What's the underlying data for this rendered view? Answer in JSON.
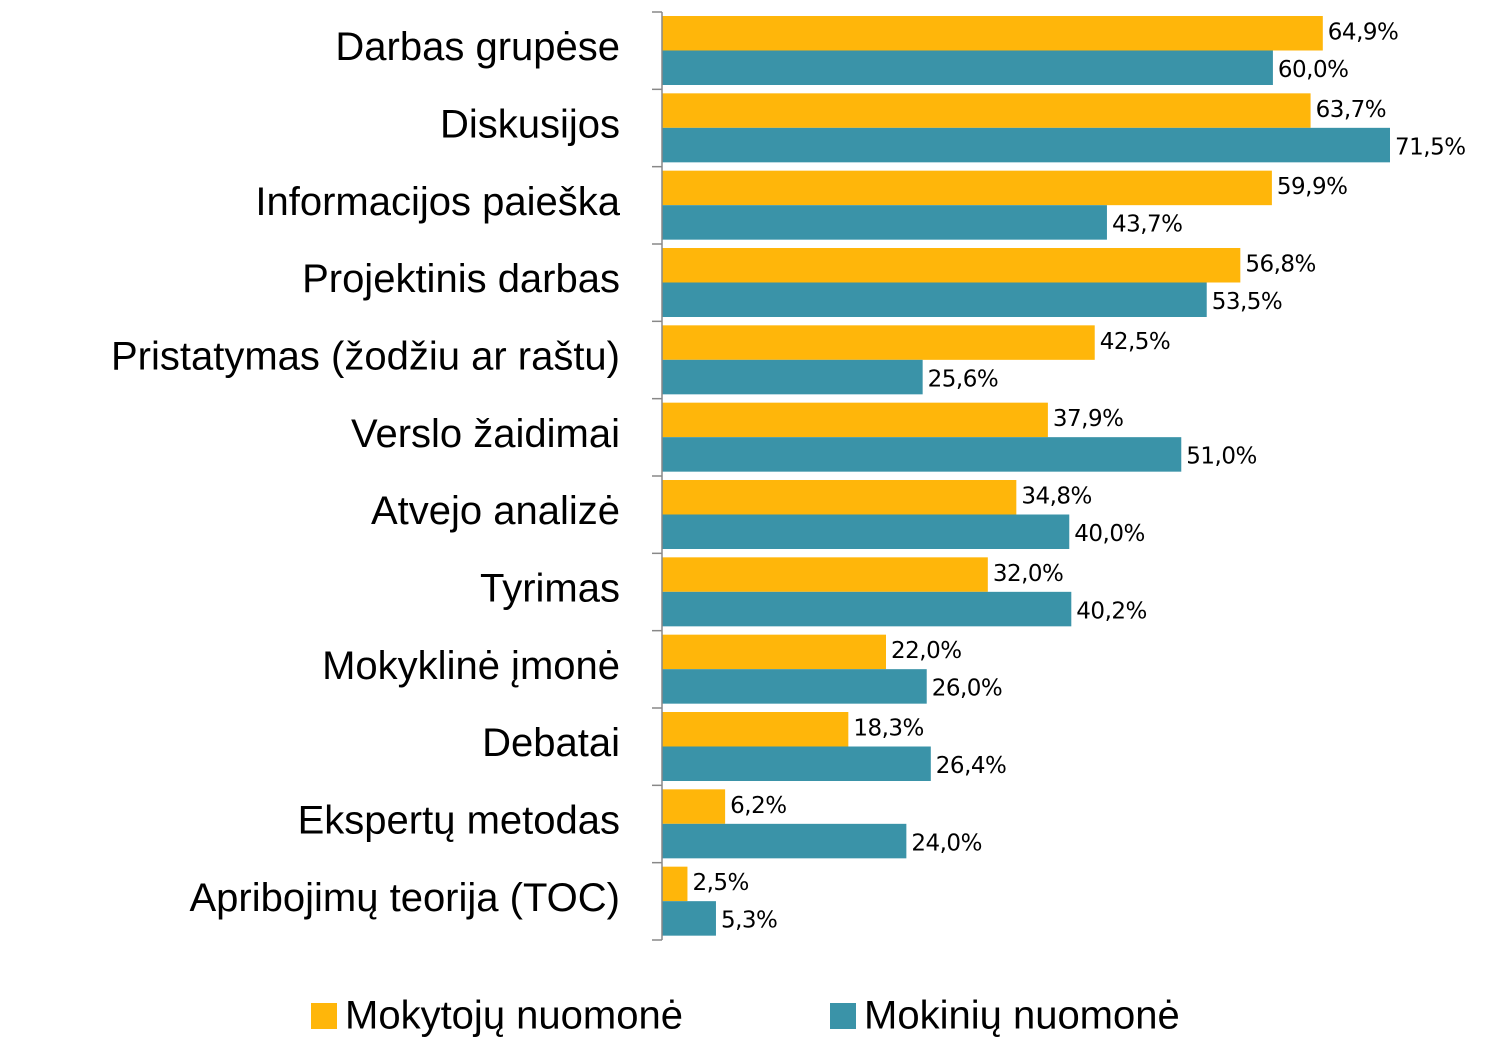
{
  "chart_data": {
    "type": "barh",
    "categories": [
      "Darbas grupėse",
      "Diskusijos",
      "Informacijos paieška",
      "Projektinis darbas",
      "Pristatymas (žodžiu ar raštu)",
      "Verslo žaidimai",
      "Atvejo analizė",
      "Tyrimas",
      "Mokyklinė įmonė",
      "Debatai",
      "Ekspertų metodas",
      "Apribojimų teorija (TOC)"
    ],
    "series": [
      {
        "name": "Mokytojų nuomonė",
        "color": "#FFB60A",
        "values": [
          64.9,
          63.7,
          59.9,
          56.8,
          42.5,
          37.9,
          34.8,
          32.0,
          22.0,
          18.3,
          6.2,
          2.5
        ],
        "value_labels": [
          "64,9%",
          "63,7%",
          "59,9%",
          "56,8%",
          "42,5%",
          "37,9%",
          "34,8%",
          "32,0%",
          "22,0%",
          "18,3%",
          "6,2%",
          "2,5%"
        ]
      },
      {
        "name": "Mokinių nuomonė",
        "color": "#3A93A8",
        "values": [
          60.0,
          71.5,
          43.7,
          53.5,
          25.6,
          51.0,
          40.0,
          40.2,
          26.0,
          26.4,
          24.0,
          5.3
        ],
        "value_labels": [
          "60,0%",
          "71,5%",
          "43,7%",
          "53,5%",
          "25,6%",
          "51,0%",
          "40,0%",
          "40,2%",
          "26,0%",
          "26,4%",
          "24,0%",
          "5,3%"
        ]
      }
    ],
    "legend": "bottom"
  }
}
